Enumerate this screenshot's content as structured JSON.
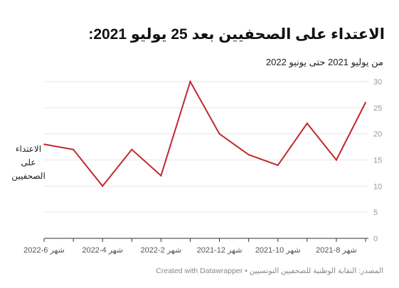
{
  "page": {
    "title": "الاعتداء على الصحفيين بعد 25 يوليو 2021:",
    "subtitle": "من يوليو 2021 حتى يونيو 2022",
    "footer_source": "المصدر: النقابة الوطنية للصحفيين التونسيين",
    "footer_separator": "•",
    "footer_credit": "Created with Datawrapper"
  },
  "chart_data": {
    "type": "line",
    "x": [
      "2021-07",
      "2021-08",
      "2021-09",
      "2021-10",
      "2021-11",
      "2021-12",
      "2022-01",
      "2022-02",
      "2022-03",
      "2022-04",
      "2022-05",
      "2022-06"
    ],
    "x_axis_direction": "right-to-left",
    "series": [
      {
        "name": "الاعتداء على الصحفيين",
        "name_lines": [
          "الاعتداء",
          "على",
          "الصحفيين"
        ],
        "color": "#c0282d",
        "values": [
          26,
          15,
          22,
          14,
          16,
          20,
          30,
          12,
          17,
          10,
          17,
          18
        ]
      }
    ],
    "x_ticks": [
      {
        "x": "2021-08",
        "label": "شهر 8-2021"
      },
      {
        "x": "2021-10",
        "label": "شهر 10-2021"
      },
      {
        "x": "2021-12",
        "label": "شهر 12-2021"
      },
      {
        "x": "2022-02",
        "label": "شهر 2-2022"
      },
      {
        "x": "2022-04",
        "label": "شهر 4-2022"
      },
      {
        "x": "2022-06",
        "label": "شهر 6-2022"
      }
    ],
    "y_ticks": [
      0,
      5,
      10,
      15,
      20,
      25,
      30
    ],
    "ylim": [
      0,
      30
    ],
    "y_axis_position": "right",
    "grid": true,
    "grid_color": "#e6e6e6",
    "legend": "inline-left"
  }
}
